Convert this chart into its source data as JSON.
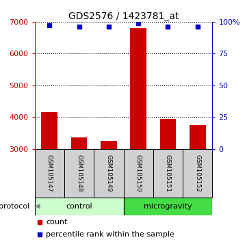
{
  "title": "GDS2576 / 1423781_at",
  "samples": [
    "GSM105147",
    "GSM105148",
    "GSM105149",
    "GSM105150",
    "GSM105151",
    "GSM105152"
  ],
  "counts": [
    4150,
    3350,
    3250,
    6800,
    3950,
    3750
  ],
  "percentile_ranks": [
    97,
    96,
    96,
    99,
    96,
    96
  ],
  "baseline": 3000,
  "ylim_left": [
    3000,
    7000
  ],
  "ylim_right": [
    0,
    100
  ],
  "yticks_left": [
    3000,
    4000,
    5000,
    6000,
    7000
  ],
  "yticks_right": [
    0,
    25,
    50,
    75,
    100
  ],
  "ytick_labels_right": [
    "0",
    "25",
    "50",
    "75",
    "100%"
  ],
  "control_samples": [
    0,
    1,
    2
  ],
  "microgravity_samples": [
    3,
    4,
    5
  ],
  "bar_color": "#cc0000",
  "dot_color": "#0000cc",
  "control_color": "#ccffcc",
  "microgravity_color": "#44dd44",
  "header_bg": "#d0d0d0",
  "axis_left_color": "#cc0000",
  "axis_right_color": "#0000cc",
  "grid_color": "#000000",
  "bar_width": 0.55,
  "legend_count_color": "#cc0000",
  "legend_pct_color": "#0000cc",
  "title_fontsize": 10,
  "tick_fontsize": 8,
  "sample_fontsize": 6.5,
  "protocol_fontsize": 8,
  "legend_fontsize": 8
}
